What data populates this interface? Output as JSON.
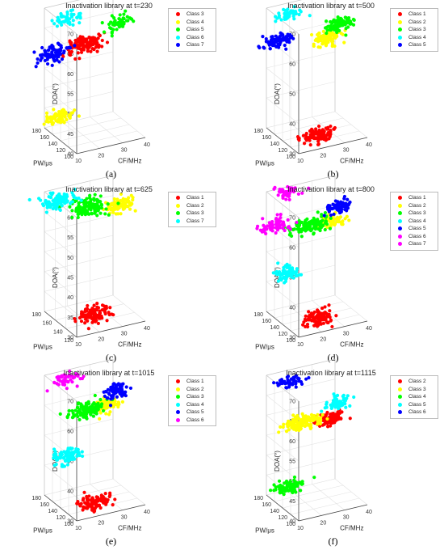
{
  "figure": {
    "panel_labels": [
      "(a)",
      "(b)",
      "(c)",
      "(d)",
      "(e)",
      "(f)"
    ]
  },
  "axis_text": {
    "x_title": "CF/MHz",
    "y_title": "PW/μs",
    "z_title": "DOA(°)"
  },
  "colors": {
    "red": "#ff0000",
    "yellow": "#ffff00",
    "green": "#00ff00",
    "cyan": "#00ffff",
    "blue": "#0000ff",
    "magenta": "#ff00ff"
  },
  "chart_data": [
    {
      "type": "scatter3d",
      "title": "Inactivation library at t=230",
      "xlabel": "CF/MHz",
      "ylabel": "PW/μs",
      "zlabel": "DOA(°)",
      "xlim": [
        10,
        40
      ],
      "ylim": [
        100,
        180
      ],
      "zlim": [
        40,
        70
      ],
      "xticks": [
        10,
        20,
        30,
        40
      ],
      "yticks": [
        100,
        120,
        140,
        160,
        180
      ],
      "zticks": [
        40,
        45,
        50,
        55,
        60,
        65,
        70
      ],
      "grid": true,
      "legend_position": "top-right",
      "series": [
        {
          "name": "Class 3",
          "color": "#ff0000",
          "cluster": {
            "cf": 28,
            "pw": 180,
            "doa": 58.5
          },
          "spread": {
            "cf": 4,
            "pw": 4,
            "doa": 1.0
          },
          "n": 130
        },
        {
          "name": "Class 4",
          "color": "#ffff00",
          "cluster": {
            "cf": 16,
            "pw": 180,
            "doa": 42.0
          },
          "spread": {
            "cf": 3,
            "pw": 3,
            "doa": 0.8
          },
          "n": 80
        },
        {
          "name": "Class 5",
          "color": "#00ff00",
          "cluster": {
            "cf": 39,
            "pw": 160,
            "doa": 64.0
          },
          "spread": {
            "cf": 2.5,
            "pw": 3,
            "doa": 1.0
          },
          "n": 60
        },
        {
          "name": "Class 6",
          "color": "#00ffff",
          "cluster": {
            "cf": 20,
            "pw": 180,
            "doa": 66.0
          },
          "spread": {
            "cf": 3,
            "pw": 3,
            "doa": 0.8
          },
          "n": 45
        },
        {
          "name": "Class 7",
          "color": "#0000ff",
          "cluster": {
            "cf": 14,
            "pw": 180,
            "doa": 58.0
          },
          "spread": {
            "cf": 3.5,
            "pw": 4,
            "doa": 1.0
          },
          "n": 90
        }
      ]
    },
    {
      "type": "scatter3d",
      "title": "Inactivation library at t=500",
      "xlabel": "CF/MHz",
      "ylabel": "PW/μs",
      "zlabel": "DOA(°)",
      "xlim": [
        10,
        40
      ],
      "ylim": [
        100,
        180
      ],
      "zlim": [
        30,
        70
      ],
      "xticks": [
        10,
        20,
        30,
        40
      ],
      "yticks": [
        100,
        120,
        140,
        160,
        180
      ],
      "zticks": [
        30,
        40,
        50,
        60,
        70
      ],
      "grid": true,
      "legend_position": "top-right",
      "series": [
        {
          "name": "Class 1",
          "color": "#ff0000",
          "cluster": {
            "cf": 22,
            "pw": 120,
            "doa": 32.0
          },
          "spread": {
            "cf": 3,
            "pw": 5,
            "doa": 1.2
          },
          "n": 110
        },
        {
          "name": "Class 2",
          "color": "#ffff00",
          "cluster": {
            "cf": 33,
            "pw": 160,
            "doa": 58.0
          },
          "spread": {
            "cf": 3,
            "pw": 4,
            "doa": 1.2
          },
          "n": 90
        },
        {
          "name": "Class 3",
          "color": "#00ff00",
          "cluster": {
            "cf": 38,
            "pw": 160,
            "doa": 62.0
          },
          "spread": {
            "cf": 3,
            "pw": 4,
            "doa": 1.2
          },
          "n": 90
        },
        {
          "name": "Class 4",
          "color": "#00ffff",
          "cluster": {
            "cf": 20,
            "pw": 180,
            "doa": 66.0
          },
          "spread": {
            "cf": 3,
            "pw": 3,
            "doa": 1.0
          },
          "n": 50
        },
        {
          "name": "Class 5",
          "color": "#0000ff",
          "cluster": {
            "cf": 15,
            "pw": 180,
            "doa": 58.0
          },
          "spread": {
            "cf": 3,
            "pw": 4,
            "doa": 1.0
          },
          "n": 80
        }
      ]
    },
    {
      "type": "scatter3d",
      "title": "Inactivation library at t=625",
      "xlabel": "CF/MHz",
      "ylabel": "PW/μs",
      "zlabel": "DOA(°)",
      "xlim": [
        10,
        40
      ],
      "ylim": [
        120,
        180
      ],
      "zlim": [
        30,
        60
      ],
      "xticks": [
        10,
        20,
        30,
        40
      ],
      "yticks": [
        120,
        140,
        160,
        180
      ],
      "zticks": [
        30,
        35,
        40,
        45,
        50,
        55,
        60
      ],
      "grid": true,
      "legend_position": "top-right",
      "series": [
        {
          "name": "Class 1",
          "color": "#ff0000",
          "cluster": {
            "cf": 22,
            "pw": 140,
            "doa": 32.0
          },
          "spread": {
            "cf": 3,
            "pw": 4,
            "doa": 1.0
          },
          "n": 110
        },
        {
          "name": "Class 2",
          "color": "#ffff00",
          "cluster": {
            "cf": 38,
            "pw": 160,
            "doa": 55.0
          },
          "spread": {
            "cf": 3,
            "pw": 4,
            "doa": 1.0
          },
          "n": 90
        },
        {
          "name": "Class 3",
          "color": "#00ff00",
          "cluster": {
            "cf": 27,
            "pw": 170,
            "doa": 55.0
          },
          "spread": {
            "cf": 4,
            "pw": 4,
            "doa": 1.0
          },
          "n": 130
        },
        {
          "name": "Class 7",
          "color": "#00ffff",
          "cluster": {
            "cf": 16,
            "pw": 180,
            "doa": 57.0
          },
          "spread": {
            "cf": 4,
            "pw": 4,
            "doa": 0.8
          },
          "n": 100
        }
      ]
    },
    {
      "type": "scatter3d",
      "title": "Inactivation library at t=800",
      "xlabel": "CF/MHz",
      "ylabel": "PW/μs",
      "zlabel": "DOA(°)",
      "xlim": [
        10,
        40
      ],
      "ylim": [
        100,
        180
      ],
      "zlim": [
        30,
        70
      ],
      "xticks": [
        10,
        20,
        30,
        40
      ],
      "yticks": [
        100,
        120,
        140,
        160,
        180
      ],
      "zticks": [
        30,
        40,
        50,
        60,
        70
      ],
      "grid": true,
      "legend_position": "top-right",
      "series": [
        {
          "name": "Class 1",
          "color": "#ff0000",
          "cluster": {
            "cf": 22,
            "pw": 120,
            "doa": 32.0
          },
          "spread": {
            "cf": 3,
            "pw": 5,
            "doa": 1.2
          },
          "n": 110
        },
        {
          "name": "Class 2",
          "color": "#ffff00",
          "cluster": {
            "cf": 34,
            "pw": 160,
            "doa": 58.0
          },
          "spread": {
            "cf": 3,
            "pw": 4,
            "doa": 1.0
          },
          "n": 80
        },
        {
          "name": "Class 3",
          "color": "#00ff00",
          "cluster": {
            "cf": 25,
            "pw": 160,
            "doa": 58.0
          },
          "spread": {
            "cf": 4,
            "pw": 4,
            "doa": 1.2
          },
          "n": 120
        },
        {
          "name": "Class 4",
          "color": "#00ffff",
          "cluster": {
            "cf": 16,
            "pw": 160,
            "doa": 44.0
          },
          "spread": {
            "cf": 3,
            "pw": 4,
            "doa": 1.2
          },
          "n": 80
        },
        {
          "name": "Class 5",
          "color": "#0000ff",
          "cluster": {
            "cf": 38,
            "pw": 160,
            "doa": 62.0
          },
          "spread": {
            "cf": 2.5,
            "pw": 3,
            "doa": 1.2
          },
          "n": 70
        },
        {
          "name": "Class 6",
          "color": "#ff00ff",
          "cluster": {
            "cf": 20,
            "pw": 180,
            "doa": 68.0
          },
          "spread": {
            "cf": 3,
            "pw": 3,
            "doa": 1.0
          },
          "n": 50
        },
        {
          "name": "Class 7",
          "color": "#ff00ff",
          "cluster": {
            "cf": 14,
            "pw": 180,
            "doa": 58.0
          },
          "spread": {
            "cf": 3,
            "pw": 4,
            "doa": 1.0
          },
          "n": 70
        }
      ]
    },
    {
      "type": "scatter3d",
      "title": "Inactivation library at t=1015",
      "xlabel": "CF/MHz",
      "ylabel": "PW/μs",
      "zlabel": "DOA(°)",
      "xlim": [
        10,
        40
      ],
      "ylim": [
        100,
        180
      ],
      "zlim": [
        30,
        70
      ],
      "xticks": [
        10,
        20,
        30,
        40
      ],
      "yticks": [
        100,
        120,
        140,
        160,
        180
      ],
      "zticks": [
        30,
        40,
        50,
        60,
        70
      ],
      "grid": true,
      "legend_position": "top-right",
      "series": [
        {
          "name": "Class 1",
          "color": "#ff0000",
          "cluster": {
            "cf": 22,
            "pw": 120,
            "doa": 32.0
          },
          "spread": {
            "cf": 3,
            "pw": 5,
            "doa": 1.2
          },
          "n": 110
        },
        {
          "name": "Class 2",
          "color": "#ffff00",
          "cluster": {
            "cf": 34,
            "pw": 160,
            "doa": 58.0
          },
          "spread": {
            "cf": 3,
            "pw": 4,
            "doa": 1.0
          },
          "n": 80
        },
        {
          "name": "Class 3",
          "color": "#00ff00",
          "cluster": {
            "cf": 25,
            "pw": 160,
            "doa": 58.0
          },
          "spread": {
            "cf": 4,
            "pw": 4,
            "doa": 1.2
          },
          "n": 120
        },
        {
          "name": "Class 4",
          "color": "#00ffff",
          "cluster": {
            "cf": 16,
            "pw": 160,
            "doa": 44.0
          },
          "spread": {
            "cf": 3,
            "pw": 4,
            "doa": 1.2
          },
          "n": 80
        },
        {
          "name": "Class 5",
          "color": "#0000ff",
          "cluster": {
            "cf": 38,
            "pw": 160,
            "doa": 62.0
          },
          "spread": {
            "cf": 2.5,
            "pw": 3,
            "doa": 1.2
          },
          "n": 70
        },
        {
          "name": "Class 6",
          "color": "#ff00ff",
          "cluster": {
            "cf": 20,
            "pw": 180,
            "doa": 67.0
          },
          "spread": {
            "cf": 3,
            "pw": 3,
            "doa": 1.0
          },
          "n": 50
        }
      ]
    },
    {
      "type": "scatter3d",
      "title": "Inactivation library at t=1115",
      "xlabel": "CF/MHz",
      "ylabel": "PW/μs",
      "zlabel": "DOA(°)",
      "xlim": [
        10,
        40
      ],
      "ylim": [
        100,
        180
      ],
      "zlim": [
        40,
        70
      ],
      "xticks": [
        10,
        20,
        30,
        40
      ],
      "yticks": [
        100,
        120,
        140,
        160,
        180
      ],
      "zticks": [
        40,
        45,
        50,
        55,
        60,
        65,
        70
      ],
      "grid": true,
      "legend_position": "top-right",
      "series": [
        {
          "name": "Class 2",
          "color": "#ff0000",
          "cluster": {
            "cf": 34,
            "pw": 160,
            "doa": 57.5
          },
          "spread": {
            "cf": 3,
            "pw": 4,
            "doa": 0.8
          },
          "n": 100
        },
        {
          "name": "Class 3",
          "color": "#ffff00",
          "cluster": {
            "cf": 24,
            "pw": 170,
            "doa": 57.0
          },
          "spread": {
            "cf": 4,
            "pw": 4,
            "doa": 0.8
          },
          "n": 130
        },
        {
          "name": "Class 4",
          "color": "#00ff00",
          "cluster": {
            "cf": 16,
            "pw": 160,
            "doa": 43.0
          },
          "spread": {
            "cf": 3,
            "pw": 4,
            "doa": 0.8
          },
          "n": 80
        },
        {
          "name": "Class 5",
          "color": "#00ffff",
          "cluster": {
            "cf": 38,
            "pw": 160,
            "doa": 61.0
          },
          "spread": {
            "cf": 2.5,
            "pw": 3,
            "doa": 0.8
          },
          "n": 70
        },
        {
          "name": "Class 6",
          "color": "#0000ff",
          "cluster": {
            "cf": 20,
            "pw": 180,
            "doa": 67.0
          },
          "spread": {
            "cf": 3,
            "pw": 3,
            "doa": 0.7
          },
          "n": 50
        }
      ]
    }
  ]
}
